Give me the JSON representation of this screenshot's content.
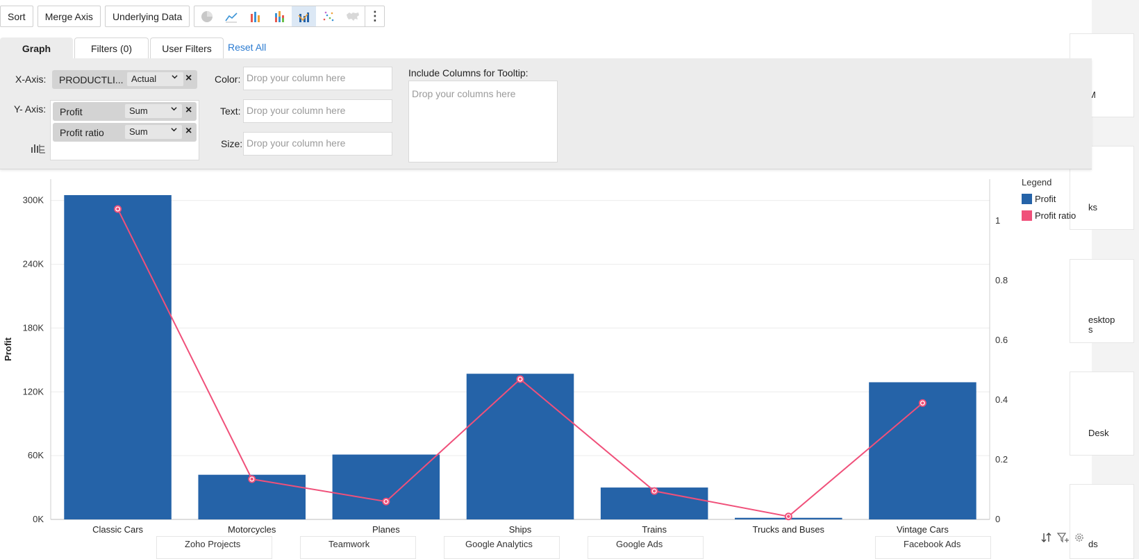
{
  "toolbar": {
    "sort_label": "Sort",
    "merge_axis_label": "Merge Axis",
    "underlying_data_label": "Underlying Data",
    "chart_types": [
      "pie-chart-icon",
      "line-chart-icon",
      "bar-chart-icon",
      "stacked-bar-icon",
      "combo-chart-icon",
      "scatter-chart-icon",
      "map-chart-icon"
    ],
    "active_chart_type": "combo-chart-icon",
    "more_label": "⋮"
  },
  "tabs": {
    "graph": "Graph",
    "filters": "Filters (0)",
    "user_filters": "User Filters",
    "reset_all": "Reset All"
  },
  "config": {
    "x_axis_label": "X-Axis:",
    "x_axis": {
      "column": "PRODUCTLI...",
      "aggregate": "Actual"
    },
    "y_axis_label": "Y- Axis:",
    "y_axis": [
      {
        "column": "Profit",
        "aggregate": "Sum"
      },
      {
        "column": "Profit ratio",
        "aggregate": "Sum"
      }
    ],
    "color_label": "Color:",
    "text_label": "Text:",
    "size_label": "Size:",
    "drop_column_placeholder": "Drop your column here",
    "tooltip_label": "Include Columns for Tooltip:",
    "tooltip_placeholder": "Drop your columns here"
  },
  "legend": {
    "title": "Legend",
    "items": [
      {
        "label": "Profit",
        "color": "#2563a8"
      },
      {
        "label": "Profit ratio",
        "color": "#f0507a"
      }
    ]
  },
  "chart_data": {
    "type": "bar",
    "categories": [
      "Classic Cars",
      "Motorcycles",
      "Planes",
      "Ships",
      "Trains",
      "Trucks and Buses",
      "Vintage Cars"
    ],
    "series": [
      {
        "name": "Profit",
        "type": "bar",
        "axis": "left",
        "values": [
          305000,
          42000,
          61000,
          137000,
          30000,
          1500,
          129000
        ],
        "color": "#2563a8"
      },
      {
        "name": "Profit ratio",
        "type": "line",
        "axis": "right",
        "values": [
          1.04,
          0.135,
          0.06,
          0.47,
          0.095,
          0.01,
          0.39
        ],
        "color": "#f0507a"
      }
    ],
    "ylabel": "Profit",
    "ylim": [
      0,
      320000
    ],
    "y_ticks": [
      "0K",
      "60K",
      "120K",
      "180K",
      "240K",
      "300K"
    ],
    "y_tick_values": [
      0,
      60000,
      120000,
      180000,
      240000,
      300000
    ],
    "y2lim": [
      0,
      1.14
    ],
    "y2_ticks": [
      "0",
      "0.2",
      "0.4",
      "0.6",
      "0.8",
      "1"
    ],
    "y2_tick_values": [
      0,
      0.2,
      0.4,
      0.6,
      0.8,
      1
    ],
    "grid": true,
    "legend_position": "top-right"
  },
  "background": {
    "right_cards": [
      "M",
      "ks",
      "esktop",
      "s",
      "Desk",
      "ds"
    ],
    "bottom_cards": [
      "Zoho Projects",
      "Teamwork",
      "Google Analytics",
      "Google Ads",
      "Facebook Ads"
    ]
  }
}
